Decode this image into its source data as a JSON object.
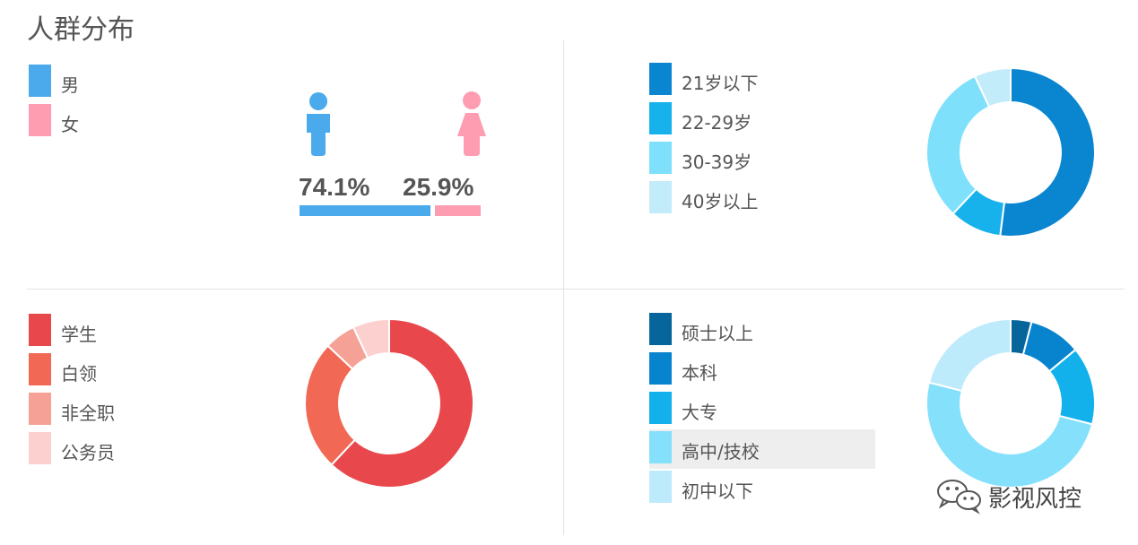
{
  "page_title": "人群分布",
  "gender": {
    "legend": [
      {
        "label": "男",
        "color": "#4aaaec"
      },
      {
        "label": "女",
        "color": "#fe9db1"
      }
    ],
    "male_percent_text": "74.1%",
    "female_percent_text": "25.9%",
    "male_fraction": 0.741,
    "female_fraction": 0.259,
    "icons": [
      "male-person-icon",
      "female-person-icon"
    ]
  },
  "chart_data": [
    {
      "type": "pie",
      "categories": [
        "21岁以下",
        "22-29岁",
        "30-39岁",
        "40岁以上"
      ],
      "values": [
        52,
        10,
        31,
        7
      ],
      "colors": [
        "#0a85d0",
        "#17b2ec",
        "#7fe0fc",
        "#c3ecfb"
      ]
    },
    {
      "type": "pie",
      "categories": [
        "学生",
        "白领",
        "非全职",
        "公务员"
      ],
      "values": [
        62,
        25,
        6,
        7
      ],
      "colors": [
        "#e8484b",
        "#f16955",
        "#f5a196",
        "#fdd0d0"
      ]
    },
    {
      "type": "pie",
      "categories": [
        "硕士以上",
        "本科",
        "大专",
        "高中/技校",
        "初中以下"
      ],
      "values": [
        4,
        10,
        15,
        50,
        21
      ],
      "colors": [
        "#06659b",
        "#0884ce",
        "#13b1ec",
        "#84e0fb",
        "#beebfb"
      ]
    }
  ],
  "watermark": {
    "text": "影视风控",
    "icon": "wechat-icon"
  }
}
